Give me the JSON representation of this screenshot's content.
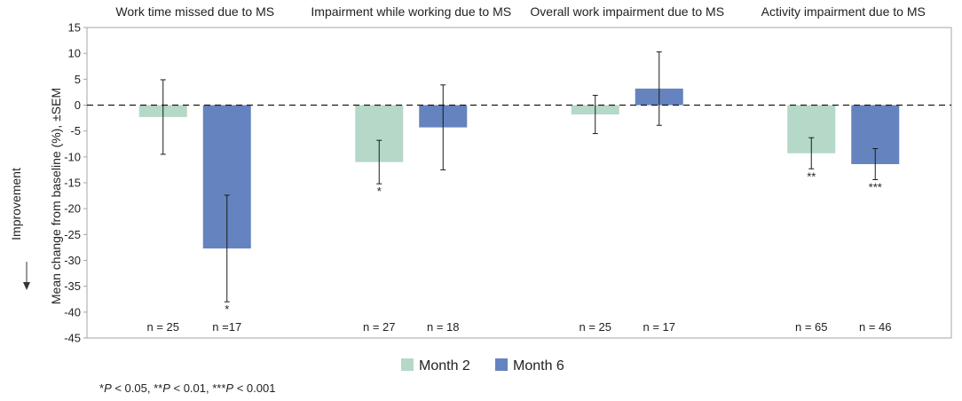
{
  "chart_data": {
    "type": "bar",
    "title": "",
    "categories": [
      "Work time missed due to MS",
      "Impairment while working due to MS",
      "Overall work impairment due to MS",
      "Activity impairment due to MS"
    ],
    "series": [
      {
        "name": "Month 2",
        "color": "#b5d8c8",
        "values": [
          -2.3,
          -11.0,
          -1.8,
          -9.3
        ],
        "errors": [
          7.2,
          4.2,
          3.7,
          3.0
        ],
        "n": [
          "n = 25",
          "n = 27",
          "n = 25",
          "n = 65"
        ],
        "significance": [
          "",
          "*",
          "",
          "**"
        ]
      },
      {
        "name": "Month 6",
        "color": "#6583be",
        "values": [
          -27.7,
          -4.3,
          3.2,
          -11.4
        ],
        "errors": [
          10.3,
          8.2,
          7.1,
          3.0
        ],
        "n": [
          "n =17",
          "n = 18",
          "n = 17",
          "n = 46"
        ],
        "significance": [
          "*",
          "",
          "",
          "***"
        ]
      }
    ],
    "ylabel": "Mean change from baseline (%), ±SEM",
    "arrow_label": "Improvement",
    "ylim": [
      -45,
      15
    ],
    "yticks": [
      15,
      10,
      5,
      0,
      -5,
      -10,
      -15,
      -20,
      -25,
      -30,
      -35,
      -40,
      -45
    ],
    "grid": false,
    "zero_line": "dashed",
    "legend": "bottom-center"
  },
  "footnote": {
    "p1_prefix": "*",
    "p_letter": "P",
    "p1_rest": " < 0.05, **",
    "p2_rest": " < 0.01, ***",
    "p3_rest": " < 0.001"
  }
}
